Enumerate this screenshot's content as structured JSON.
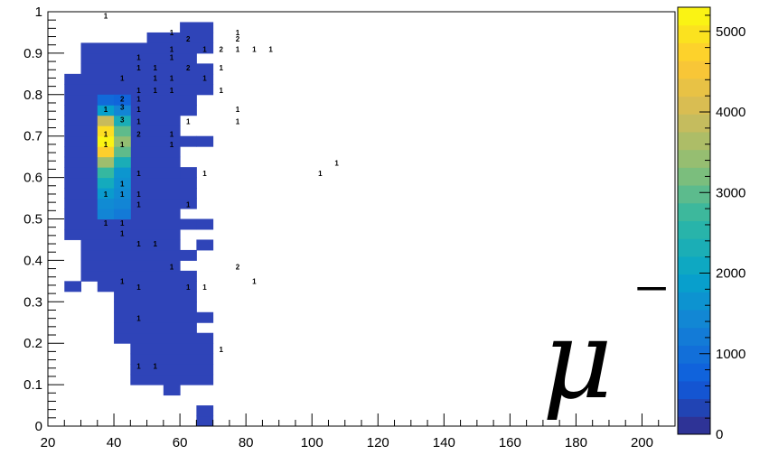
{
  "chart_data": {
    "type": "heatmap",
    "title": "",
    "xlabel": "",
    "ylabel": "",
    "xlim": [
      20,
      210
    ],
    "ylim": [
      0,
      1
    ],
    "x_bin_width": 5,
    "y_bin_width": 0.025,
    "x_ticks": [
      "20",
      "40",
      "60",
      "80",
      "100",
      "120",
      "140",
      "160",
      "180",
      "200"
    ],
    "y_ticks": [
      "0",
      "0.1",
      "0.2",
      "0.3",
      "0.4",
      "0.5",
      "0.6",
      "0.7",
      "0.8",
      "0.9",
      "1"
    ],
    "colorbar": {
      "range": [
        0,
        5300
      ],
      "ticks": [
        "0",
        "1000",
        "2000",
        "3000",
        "4000",
        "5000"
      ]
    },
    "annotation": "μ⁻",
    "cells": [
      {
        "x": 35,
        "y": 0.5,
        "value": 1400
      },
      {
        "x": 40,
        "y": 0.5,
        "value": 1200
      },
      {
        "x": 35,
        "y": 0.525,
        "value": 1500
      },
      {
        "x": 40,
        "y": 0.525,
        "value": 1400
      },
      {
        "x": 35,
        "y": 0.55,
        "value": 1800
      },
      {
        "x": 40,
        "y": 0.55,
        "value": 1500
      },
      {
        "x": 35,
        "y": 0.575,
        "value": 2200
      },
      {
        "x": 40,
        "y": 0.575,
        "value": 1600
      },
      {
        "x": 35,
        "y": 0.6,
        "value": 2700
      },
      {
        "x": 40,
        "y": 0.6,
        "value": 1700
      },
      {
        "x": 35,
        "y": 0.625,
        "value": 3500
      },
      {
        "x": 40,
        "y": 0.625,
        "value": 2300
      },
      {
        "x": 35,
        "y": 0.65,
        "value": 4700
      },
      {
        "x": 40,
        "y": 0.65,
        "value": 3000
      },
      {
        "x": 35,
        "y": 0.675,
        "value": 5200
      },
      {
        "x": 40,
        "y": 0.675,
        "value": 3400
      },
      {
        "x": 35,
        "y": 0.7,
        "value": 4900
      },
      {
        "x": 40,
        "y": 0.7,
        "value": 3000
      },
      {
        "x": 35,
        "y": 0.725,
        "value": 3900
      },
      {
        "x": 40,
        "y": 0.725,
        "value": 2300
      },
      {
        "x": 35,
        "y": 0.75,
        "value": 1900
      },
      {
        "x": 40,
        "y": 0.75,
        "value": 1400
      },
      {
        "x": 35,
        "y": 0.775,
        "value": 900
      },
      {
        "x": 40,
        "y": 0.775,
        "value": 800
      }
    ],
    "count_labels": [
      {
        "x": 37.5,
        "y": 0.99,
        "text": "1"
      },
      {
        "x": 57.5,
        "y": 0.95,
        "text": "1"
      },
      {
        "x": 77.5,
        "y": 0.95,
        "text": "1"
      },
      {
        "x": 62.5,
        "y": 0.935,
        "text": "2"
      },
      {
        "x": 77.5,
        "y": 0.935,
        "text": "2"
      },
      {
        "x": 57.5,
        "y": 0.91,
        "text": "1"
      },
      {
        "x": 67.5,
        "y": 0.91,
        "text": "1"
      },
      {
        "x": 72.5,
        "y": 0.91,
        "text": "2"
      },
      {
        "x": 77.5,
        "y": 0.91,
        "text": "1"
      },
      {
        "x": 82.5,
        "y": 0.91,
        "text": "1"
      },
      {
        "x": 87.5,
        "y": 0.91,
        "text": "1"
      },
      {
        "x": 47.5,
        "y": 0.89,
        "text": "1"
      },
      {
        "x": 57.5,
        "y": 0.89,
        "text": "1"
      },
      {
        "x": 47.5,
        "y": 0.865,
        "text": "1"
      },
      {
        "x": 52.5,
        "y": 0.865,
        "text": "1"
      },
      {
        "x": 62.5,
        "y": 0.865,
        "text": "2"
      },
      {
        "x": 72.5,
        "y": 0.865,
        "text": "1"
      },
      {
        "x": 42.5,
        "y": 0.84,
        "text": "1"
      },
      {
        "x": 52.5,
        "y": 0.84,
        "text": "1"
      },
      {
        "x": 57.5,
        "y": 0.84,
        "text": "1"
      },
      {
        "x": 67.5,
        "y": 0.84,
        "text": "1"
      },
      {
        "x": 47.5,
        "y": 0.81,
        "text": "1"
      },
      {
        "x": 52.5,
        "y": 0.81,
        "text": "1"
      },
      {
        "x": 57.5,
        "y": 0.81,
        "text": "1"
      },
      {
        "x": 72.5,
        "y": 0.81,
        "text": "1"
      },
      {
        "x": 42.5,
        "y": 0.79,
        "text": "2"
      },
      {
        "x": 47.5,
        "y": 0.79,
        "text": "1"
      },
      {
        "x": 37.5,
        "y": 0.765,
        "text": "1"
      },
      {
        "x": 42.5,
        "y": 0.77,
        "text": "3"
      },
      {
        "x": 47.5,
        "y": 0.765,
        "text": "1"
      },
      {
        "x": 77.5,
        "y": 0.765,
        "text": "1"
      },
      {
        "x": 42.5,
        "y": 0.74,
        "text": "3"
      },
      {
        "x": 47.5,
        "y": 0.735,
        "text": "1"
      },
      {
        "x": 62.5,
        "y": 0.735,
        "text": "1"
      },
      {
        "x": 77.5,
        "y": 0.735,
        "text": "1"
      },
      {
        "x": 37.5,
        "y": 0.705,
        "text": "1"
      },
      {
        "x": 47.5,
        "y": 0.705,
        "text": "2"
      },
      {
        "x": 57.5,
        "y": 0.705,
        "text": "1"
      },
      {
        "x": 37.5,
        "y": 0.68,
        "text": "1"
      },
      {
        "x": 42.5,
        "y": 0.68,
        "text": "1"
      },
      {
        "x": 57.5,
        "y": 0.68,
        "text": "1"
      },
      {
        "x": 47.5,
        "y": 0.61,
        "text": "1"
      },
      {
        "x": 67.5,
        "y": 0.61,
        "text": "1"
      },
      {
        "x": 102.5,
        "y": 0.61,
        "text": "1"
      },
      {
        "x": 107.5,
        "y": 0.635,
        "text": "1"
      },
      {
        "x": 42.5,
        "y": 0.585,
        "text": "1"
      },
      {
        "x": 37.5,
        "y": 0.56,
        "text": "1"
      },
      {
        "x": 42.5,
        "y": 0.56,
        "text": "1"
      },
      {
        "x": 47.5,
        "y": 0.56,
        "text": "1"
      },
      {
        "x": 47.5,
        "y": 0.535,
        "text": "1"
      },
      {
        "x": 62.5,
        "y": 0.535,
        "text": "1"
      },
      {
        "x": 37.5,
        "y": 0.49,
        "text": "1"
      },
      {
        "x": 42.5,
        "y": 0.49,
        "text": "1"
      },
      {
        "x": 42.5,
        "y": 0.465,
        "text": "1"
      },
      {
        "x": 47.5,
        "y": 0.44,
        "text": "1"
      },
      {
        "x": 52.5,
        "y": 0.44,
        "text": "1"
      },
      {
        "x": 57.5,
        "y": 0.385,
        "text": "1"
      },
      {
        "x": 77.5,
        "y": 0.385,
        "text": "2"
      },
      {
        "x": 82.5,
        "y": 0.35,
        "text": "1"
      },
      {
        "x": 42.5,
        "y": 0.35,
        "text": "1"
      },
      {
        "x": 47.5,
        "y": 0.335,
        "text": "1"
      },
      {
        "x": 62.5,
        "y": 0.335,
        "text": "1"
      },
      {
        "x": 67.5,
        "y": 0.335,
        "text": "1"
      },
      {
        "x": 47.5,
        "y": 0.26,
        "text": "1"
      },
      {
        "x": 72.5,
        "y": 0.185,
        "text": "1"
      },
      {
        "x": 47.5,
        "y": 0.145,
        "text": "1"
      },
      {
        "x": 52.5,
        "y": 0.145,
        "text": "1"
      }
    ]
  }
}
